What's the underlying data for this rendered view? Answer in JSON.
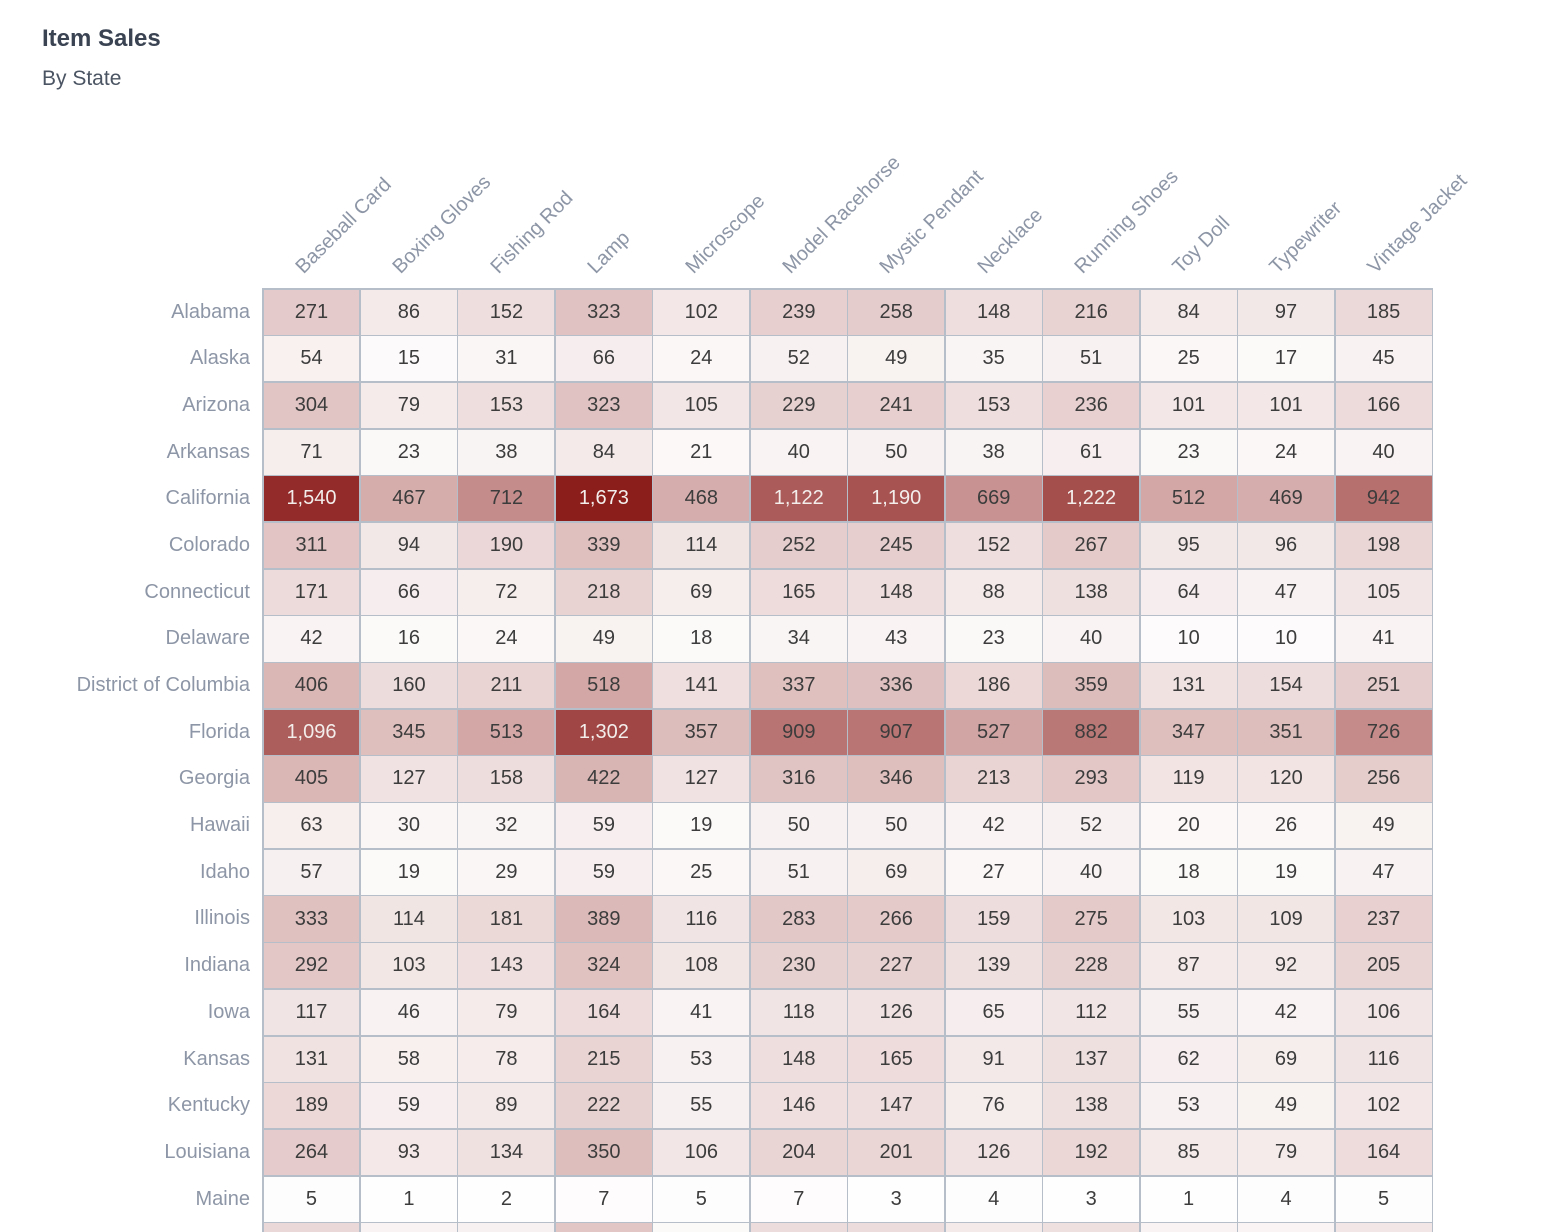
{
  "header": {
    "title": "Item Sales",
    "subtitle": "By State"
  },
  "chart_data": {
    "type": "heatmap",
    "title": "Item Sales",
    "subtitle": "By State",
    "legend": "none",
    "columns": [
      "Baseball Card",
      "Boxing Gloves",
      "Fishing Rod",
      "Lamp",
      "Microscope",
      "Model Racehorse",
      "Mystic Pendant",
      "Necklace",
      "Running Shoes",
      "Toy Doll",
      "Typewriter",
      "Vintage Jacket"
    ],
    "rows": [
      "Alabama",
      "Alaska",
      "Arizona",
      "Arkansas",
      "California",
      "Colorado",
      "Connecticut",
      "Delaware",
      "District of Columbia",
      "Florida",
      "Georgia",
      "Hawaii",
      "Idaho",
      "Illinois",
      "Indiana",
      "Iowa",
      "Kansas",
      "Kentucky",
      "Louisiana",
      "Maine"
    ],
    "values": [
      [
        271,
        86,
        152,
        323,
        102,
        239,
        258,
        148,
        216,
        84,
        97,
        185
      ],
      [
        54,
        15,
        31,
        66,
        24,
        52,
        49,
        35,
        51,
        25,
        17,
        45
      ],
      [
        304,
        79,
        153,
        323,
        105,
        229,
        241,
        153,
        236,
        101,
        101,
        166
      ],
      [
        71,
        23,
        38,
        84,
        21,
        40,
        50,
        38,
        61,
        23,
        24,
        40
      ],
      [
        1540,
        467,
        712,
        1673,
        468,
        1122,
        1190,
        669,
        1222,
        512,
        469,
        942
      ],
      [
        311,
        94,
        190,
        339,
        114,
        252,
        245,
        152,
        267,
        95,
        96,
        198
      ],
      [
        171,
        66,
        72,
        218,
        69,
        165,
        148,
        88,
        138,
        64,
        47,
        105
      ],
      [
        42,
        16,
        24,
        49,
        18,
        34,
        43,
        23,
        40,
        10,
        10,
        41
      ],
      [
        406,
        160,
        211,
        518,
        141,
        337,
        336,
        186,
        359,
        131,
        154,
        251
      ],
      [
        1096,
        345,
        513,
        1302,
        357,
        909,
        907,
        527,
        882,
        347,
        351,
        726
      ],
      [
        405,
        127,
        158,
        422,
        127,
        316,
        346,
        213,
        293,
        119,
        120,
        256
      ],
      [
        63,
        30,
        32,
        59,
        19,
        50,
        50,
        42,
        52,
        20,
        26,
        49
      ],
      [
        57,
        19,
        29,
        59,
        25,
        51,
        69,
        27,
        40,
        18,
        19,
        47
      ],
      [
        333,
        114,
        181,
        389,
        116,
        283,
        266,
        159,
        275,
        103,
        109,
        237
      ],
      [
        292,
        103,
        143,
        324,
        108,
        230,
        227,
        139,
        228,
        87,
        92,
        205
      ],
      [
        117,
        46,
        79,
        164,
        41,
        118,
        126,
        65,
        112,
        55,
        42,
        106
      ],
      [
        131,
        58,
        78,
        215,
        53,
        148,
        165,
        91,
        137,
        62,
        69,
        116
      ],
      [
        189,
        59,
        89,
        222,
        55,
        146,
        147,
        76,
        138,
        53,
        49,
        102
      ],
      [
        264,
        93,
        134,
        350,
        106,
        204,
        201,
        126,
        192,
        85,
        79,
        164
      ],
      [
        5,
        1,
        2,
        7,
        5,
        7,
        3,
        4,
        3,
        1,
        4,
        5
      ]
    ],
    "max_value": 1673,
    "value_format": "thousands-comma",
    "layout": {
      "grid": "on",
      "column_label_angle": -45
    },
    "colors": {
      "scale_min": "#ffffff",
      "scale_max": "#8b1d1a",
      "gamma": 0.8,
      "white_text_threshold": 0.6,
      "grid_line": "#b5bec9",
      "cell_text": "#3c3c3c",
      "cell_text_light": "#f3eeec",
      "axis_label": "#8d96a6",
      "title_color": "#3a4352",
      "subtitle_color": "#4a5462"
    },
    "partial_next_row_tints": [
      "#ead7d7",
      "#faf3f3",
      "#f8f1f1",
      "#e2c6c6",
      "#fcf9f9",
      "#eddcdc",
      "#eddcdc",
      "#f4eaea",
      "#efe0e0",
      "#faf3f3",
      "#faf4f4",
      "#f2e6e6"
    ]
  }
}
